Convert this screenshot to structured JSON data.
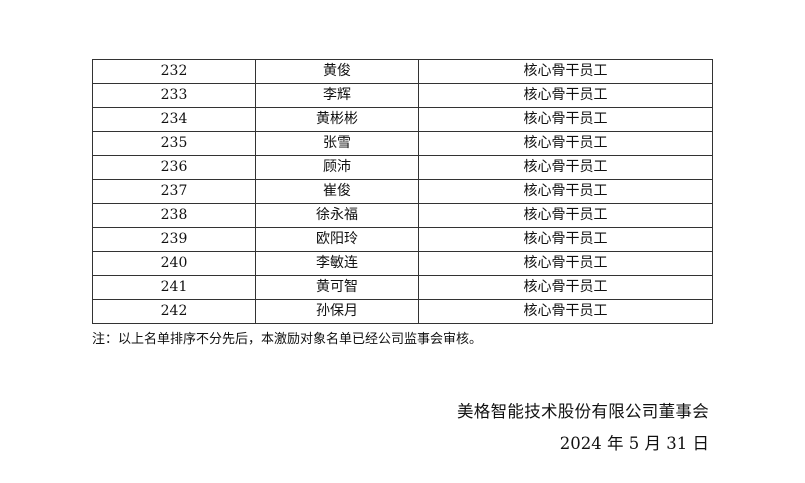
{
  "table": {
    "rows": [
      {
        "no": "232",
        "name": "黄俊",
        "role": "核心骨干员工"
      },
      {
        "no": "233",
        "name": "李辉",
        "role": "核心骨干员工"
      },
      {
        "no": "234",
        "name": "黄彬彬",
        "role": "核心骨干员工"
      },
      {
        "no": "235",
        "name": "张雪",
        "role": "核心骨干员工"
      },
      {
        "no": "236",
        "name": "顾沛",
        "role": "核心骨干员工"
      },
      {
        "no": "237",
        "name": "崔俊",
        "role": "核心骨干员工"
      },
      {
        "no": "238",
        "name": "徐永福",
        "role": "核心骨干员工"
      },
      {
        "no": "239",
        "name": "欧阳玲",
        "role": "核心骨干员工"
      },
      {
        "no": "240",
        "name": "李敏连",
        "role": "核心骨干员工"
      },
      {
        "no": "241",
        "name": "黄可智",
        "role": "核心骨干员工"
      },
      {
        "no": "242",
        "name": "孙保月",
        "role": "核心骨干员工"
      }
    ]
  },
  "note": "注：以上名单排序不分先后，本激励对象名单已经公司监事会审核。",
  "signature": {
    "organization": "美格智能技术股份有限公司董事会",
    "date": "2024 年 5 月 31 日"
  }
}
